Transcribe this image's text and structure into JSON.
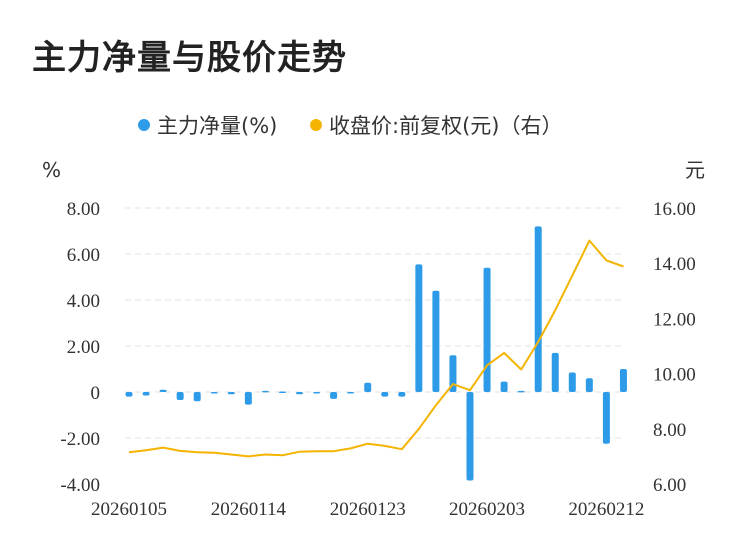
{
  "title": "主力净量与股价走势",
  "chart_data": {
    "type": "bar+line",
    "legend": {
      "position": "top-center",
      "items": [
        {
          "label": "主力净量(%)",
          "color": "#2e9be8",
          "marker": "circle"
        },
        {
          "label": "收盘价:前复权(元)（右）",
          "color": "#f4b400",
          "marker": "circle"
        }
      ]
    },
    "left_axis": {
      "unit": "%",
      "min": -4,
      "max": 8,
      "ticks": [
        "8.00",
        "6.00",
        "4.00",
        "2.00",
        "0",
        "-2.00",
        "-4.00"
      ]
    },
    "right_axis": {
      "unit": "元",
      "min": 6,
      "max": 16,
      "ticks": [
        "16.00",
        "14.00",
        "12.00",
        "10.00",
        "8.00",
        "6.00"
      ]
    },
    "x_tick_labels": [
      "20260105",
      "20260114",
      "20260123",
      "20260203",
      "20260212"
    ],
    "x_tick_indices": [
      0,
      7,
      14,
      21,
      28
    ],
    "grid": true,
    "series": [
      {
        "name": "主力净量(%)",
        "type": "bar",
        "axis": "left",
        "color": "#2e9be8",
        "values": [
          -0.2,
          -0.15,
          0.1,
          -0.35,
          -0.4,
          -0.05,
          -0.1,
          -0.55,
          0.05,
          0.02,
          -0.1,
          -0.05,
          -0.3,
          -0.05,
          0.4,
          -0.2,
          -0.2,
          5.55,
          4.4,
          1.6,
          -3.85,
          5.4,
          0.45,
          0.05,
          7.2,
          1.7,
          0.85,
          0.6,
          -2.25,
          1.0
        ]
      },
      {
        "name": "收盘价:前复权(元)（右）",
        "type": "line",
        "axis": "right",
        "color": "#f4b400",
        "values": [
          7.15,
          7.22,
          7.32,
          7.2,
          7.15,
          7.13,
          7.07,
          7.0,
          7.07,
          7.04,
          7.17,
          7.19,
          7.19,
          7.29,
          7.46,
          7.38,
          7.26,
          8.0,
          8.85,
          9.62,
          9.4,
          10.3,
          10.75,
          10.15,
          11.15,
          12.3,
          13.55,
          14.82,
          14.1,
          13.88
        ]
      }
    ]
  }
}
